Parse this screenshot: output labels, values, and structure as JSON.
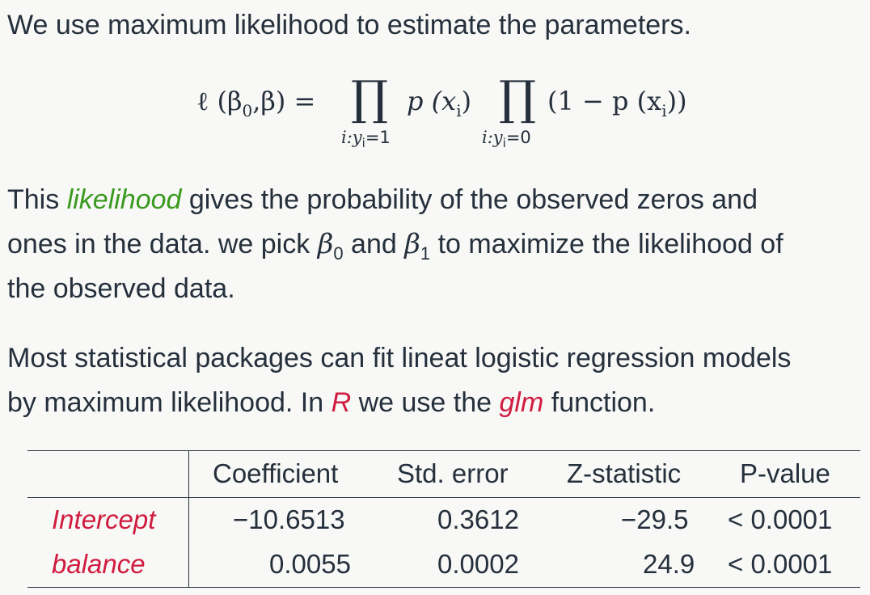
{
  "intro": {
    "text": "We use maximum likelihood to estimate the parameters."
  },
  "formula": {
    "lhs": "ℓ (β",
    "lhs_sub": "0",
    "lhs_rest": ",β) =",
    "prod1_symbol": "∏",
    "prod1_term": "p (x",
    "prod1_term_sub": "i",
    "prod1_term_close": ")",
    "prod1_limit": "i:y",
    "prod1_limit_sub": "i",
    "prod1_limit_rest": "=1",
    "prod2_symbol": "∏",
    "prod2_term": "(1 − p (x",
    "prod2_term_sub": "i",
    "prod2_term_close": "))",
    "prod2_limit": "i:y",
    "prod2_limit_sub": "i",
    "prod2_limit_rest": "=0"
  },
  "paragraph1": {
    "line1_a": "This ",
    "line1_highlight": "likelihood",
    "line1_b": " gives the probability of the observed zeros and",
    "line2_a": "ones in the data. we pick ",
    "beta0": "β",
    "beta0_sub": "0",
    "line2_b": " and ",
    "beta1": "β",
    "beta1_sub": "1",
    "line2_c": " to maximize the likelihood of",
    "line3": "the observed data."
  },
  "paragraph2": {
    "line1": "Most statistical packages can fit lineat logistic regression models",
    "line2_a": "by maximum likelihood. In ",
    "line2_R": "R",
    "line2_b": " we use the ",
    "line2_glm": "glm",
    "line2_c": " function."
  },
  "table": {
    "headers": [
      "Coefficient",
      "Std. error",
      "Z-statistic",
      "P-value"
    ],
    "rows": [
      {
        "label": "Intercept",
        "coefficient": "−10.6513",
        "std_error": "0.3612",
        "z": "−29.5",
        "p": "< 0.0001"
      },
      {
        "label": "balance",
        "coefficient": "0.0055",
        "std_error": "0.0002",
        "z": "24.9",
        "p": "< 0.0001"
      }
    ]
  },
  "colors": {
    "text": "#25303c",
    "highlight_green": "#3a9a1f",
    "highlight_red": "#d01c40",
    "background": "#f8f8f6"
  }
}
